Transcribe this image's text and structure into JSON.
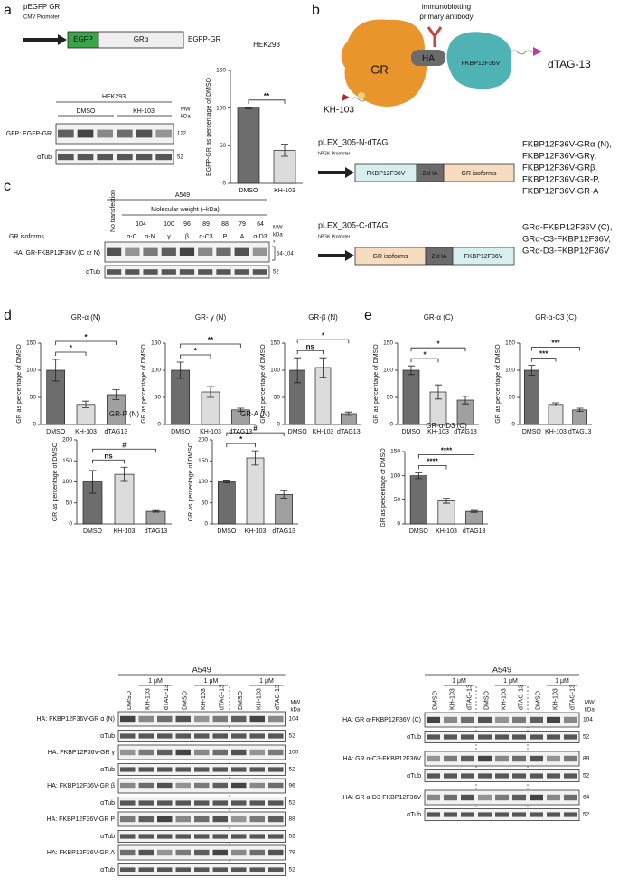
{
  "panel_labels": [
    "a",
    "b",
    "c",
    "d",
    "e"
  ],
  "panel_a": {
    "construct": "pEGFP GR",
    "promoter": "CMV Promoter",
    "egfp": "EGFP",
    "gr": "GRα",
    "product": "EGFP-GR",
    "blot_cell": "HEK293",
    "treatments": [
      "DMSO",
      "KH-103"
    ],
    "mw_header": [
      "MW",
      "kDa"
    ],
    "rows": [
      "GFP: EGFP-GR",
      "αTub"
    ],
    "mw_marks": [
      "122",
      "52"
    ]
  },
  "panel_b": {
    "gr": "GR",
    "ha": "HA",
    "antibody": [
      "immunoblotting",
      "primary antibody"
    ],
    "fkbp": "FKBP12F36V",
    "dtag": "dTAG-13",
    "kh": "KH-103",
    "construct_n": {
      "name": "pLEX_305-N-dTAG",
      "promoter": "hPGK Promoter",
      "boxes": [
        "FKBP12F36V",
        "2xHA",
        "GR isoforms"
      ],
      "products": [
        "FKBP12F36V-GRα (N),",
        "FKBP12F36V-GRγ,",
        "FKBP12F36V-GRβ,",
        "FKBP12F36V-GR-P,",
        "FKBP12F36V-GR-A"
      ]
    },
    "construct_c": {
      "name": "pLEX_305-C-dTAG",
      "promoter": "hPGK Promoter",
      "boxes": [
        "GR isoforms",
        "2xHA",
        "FKBP12F36V"
      ],
      "products": [
        "GRα-FKBP12F36V (C),",
        "GRα-C3-FKBP12F36V,",
        "GRα-D3-FKBP12F36V"
      ]
    }
  },
  "panel_c": {
    "cell": "A549",
    "mw_title": "Molecular weight (~kDa)",
    "no_transfection": "No transfection",
    "mw_values": [
      "104",
      "100",
      "96",
      "89",
      "88",
      "79",
      "64"
    ],
    "isoform_label": "GR isoforms",
    "lanes": [
      "α-C",
      "α-N",
      "γ",
      "β",
      "α-C3",
      "P",
      "A",
      "α-D3"
    ],
    "rows": [
      "HA: GR-FKBP12F36V (C or N)",
      "αTub"
    ],
    "mw_header": [
      "MW",
      "kDa"
    ],
    "mw_marks": [
      "*",
      "64-104",
      "52"
    ]
  },
  "blot_left": {
    "cell": "A549",
    "dose": [
      "1 μM",
      "1 μM",
      "1 μM"
    ],
    "lanes": [
      "DMSO",
      "KH-103",
      "dTAG-13",
      "DMSO",
      "KH-103",
      "dTAG-13",
      "DMSO",
      "KH-103",
      "dTAG-13"
    ],
    "mw_header": [
      "MW",
      "kDa"
    ],
    "rows": [
      "HA: FKBP12F36V-GR α (N)",
      "αTub",
      "HA: FKBP12F36V-GR γ",
      "αTub",
      "HA: FKBP12F36V-GR β",
      "αTub",
      "HA: FKBP12F36V-GR P",
      "αTub",
      "HA: FKBP12F36V-GR A",
      "αTub"
    ],
    "mw_marks": [
      "104",
      "52",
      "100",
      "52",
      "96",
      "52",
      "88",
      "52",
      "79",
      "52"
    ]
  },
  "blot_right": {
    "cell": "A549",
    "dose": [
      "1 μM",
      "1 μM",
      "1 μM"
    ],
    "lanes": [
      "DMSO",
      "KH-103",
      "dTAG-13",
      "DMSO",
      "KH-103",
      "dTAG-13",
      "DMSO",
      "KH-103",
      "dTAG-13"
    ],
    "mw_header": [
      "MW",
      "kDa"
    ],
    "rows": [
      "HA: GR α-FKBP12F36V (C)",
      "αTub",
      "HA: GR α-C3-FKBP12F36V",
      "αTub",
      "HA: GR α-D3-FKBP12F36V",
      "αTub"
    ],
    "mw_marks": [
      "104",
      "52",
      "89",
      "52",
      "64",
      "52"
    ]
  },
  "chart_data": [
    {
      "type": "bar",
      "title": "HEK293",
      "y_label": "EGFP-GR as percentage of DMSO",
      "categories": [
        "DMSO",
        "KH-103"
      ],
      "values": [
        100,
        44
      ],
      "errors": [
        1,
        8
      ],
      "colors": [
        "#6d6d6d",
        "#dcdcdc"
      ],
      "ylim": [
        0,
        150
      ],
      "yticks": [
        0,
        50,
        100,
        150
      ],
      "significance": [
        "**"
      ]
    },
    {
      "type": "bar",
      "title": "GR-α (N)",
      "y_label": "GR as percentage of DMSO",
      "categories": [
        "DMSO",
        "KH-103",
        "dTAG13"
      ],
      "values": [
        100,
        37,
        55
      ],
      "errors": [
        20,
        6,
        9
      ],
      "colors": [
        "#6d6d6d",
        "#dcdcdc",
        "#a0a0a0"
      ],
      "ylim": [
        0,
        150
      ],
      "yticks": [
        0,
        50,
        100,
        150
      ],
      "significance": [
        "*",
        "*"
      ]
    },
    {
      "type": "bar",
      "title": "GR- γ (N)",
      "y_label": "GR as percentage of DMSO",
      "categories": [
        "DMSO",
        "KH-103",
        "dTAG13"
      ],
      "values": [
        100,
        60,
        27
      ],
      "errors": [
        15,
        10,
        3
      ],
      "colors": [
        "#6d6d6d",
        "#dcdcdc",
        "#a0a0a0"
      ],
      "ylim": [
        0,
        150
      ],
      "yticks": [
        0,
        50,
        100,
        150
      ],
      "significance": [
        "*",
        "**"
      ]
    },
    {
      "type": "bar",
      "title": "GR-β (N)",
      "y_label": "GR as percentage of DMSO",
      "categories": [
        "DMSO",
        "KH-103",
        "dTAG13"
      ],
      "values": [
        100,
        105,
        20
      ],
      "errors": [
        23,
        18,
        3
      ],
      "colors": [
        "#6d6d6d",
        "#dcdcdc",
        "#a0a0a0"
      ],
      "ylim": [
        0,
        150
      ],
      "yticks": [
        0,
        50,
        100,
        150
      ],
      "significance": [
        "ns",
        "*"
      ]
    },
    {
      "type": "bar",
      "title": "GR-P (N)",
      "y_label": "GR as percentage of DMSO",
      "categories": [
        "DMSO",
        "KH-103",
        "dTAG13"
      ],
      "values": [
        100,
        118,
        30
      ],
      "errors": [
        27,
        17,
        2
      ],
      "colors": [
        "#6d6d6d",
        "#dcdcdc",
        "#a0a0a0"
      ],
      "ylim": [
        0,
        200
      ],
      "yticks": [
        0,
        50,
        100,
        150,
        200
      ],
      "significance": [
        "ns",
        "#"
      ]
    },
    {
      "type": "bar",
      "title": "GR-A (N)",
      "y_label": "GR as percentage of DMSO",
      "categories": [
        "DMSO",
        "KH-103",
        "dTAG13"
      ],
      "values": [
        100,
        157,
        70
      ],
      "errors": [
        2,
        17,
        9
      ],
      "colors": [
        "#6d6d6d",
        "#dcdcdc",
        "#a0a0a0"
      ],
      "ylim": [
        0,
        200
      ],
      "yticks": [
        0,
        50,
        100,
        150,
        200
      ],
      "significance": [
        "*",
        "#"
      ]
    },
    {
      "type": "bar",
      "title": "GR-α (C)",
      "y_label": "GR as percentage of DMSO",
      "categories": [
        "DMSO",
        "KH-103",
        "dTAG13"
      ],
      "values": [
        100,
        60,
        45
      ],
      "errors": [
        8,
        13,
        7
      ],
      "colors": [
        "#6d6d6d",
        "#dcdcdc",
        "#a0a0a0"
      ],
      "ylim": [
        0,
        150
      ],
      "yticks": [
        0,
        50,
        100,
        150
      ],
      "significance": [
        "*",
        "*"
      ]
    },
    {
      "type": "bar",
      "title": "GR-α-C3 (C)",
      "y_label": "GR as percentage of DMSO",
      "categories": [
        "DMSO",
        "KH-103",
        "dTAG13"
      ],
      "values": [
        100,
        37,
        27
      ],
      "errors": [
        9,
        3,
        3
      ],
      "colors": [
        "#6d6d6d",
        "#dcdcdc",
        "#a0a0a0"
      ],
      "ylim": [
        0,
        150
      ],
      "yticks": [
        0,
        50,
        100,
        150
      ],
      "significance": [
        "***",
        "***"
      ]
    },
    {
      "type": "bar",
      "title": "GR-α-D3 (C)",
      "y_label": "GR as percentage of DMSO",
      "categories": [
        "DMSO",
        "KH-103",
        "dTAG13"
      ],
      "values": [
        100,
        48,
        26
      ],
      "errors": [
        6,
        5,
        2
      ],
      "colors": [
        "#6d6d6d",
        "#dcdcdc",
        "#a0a0a0"
      ],
      "ylim": [
        0,
        150
      ],
      "yticks": [
        0,
        50,
        100,
        150
      ],
      "significance": [
        "****",
        "****"
      ]
    }
  ]
}
